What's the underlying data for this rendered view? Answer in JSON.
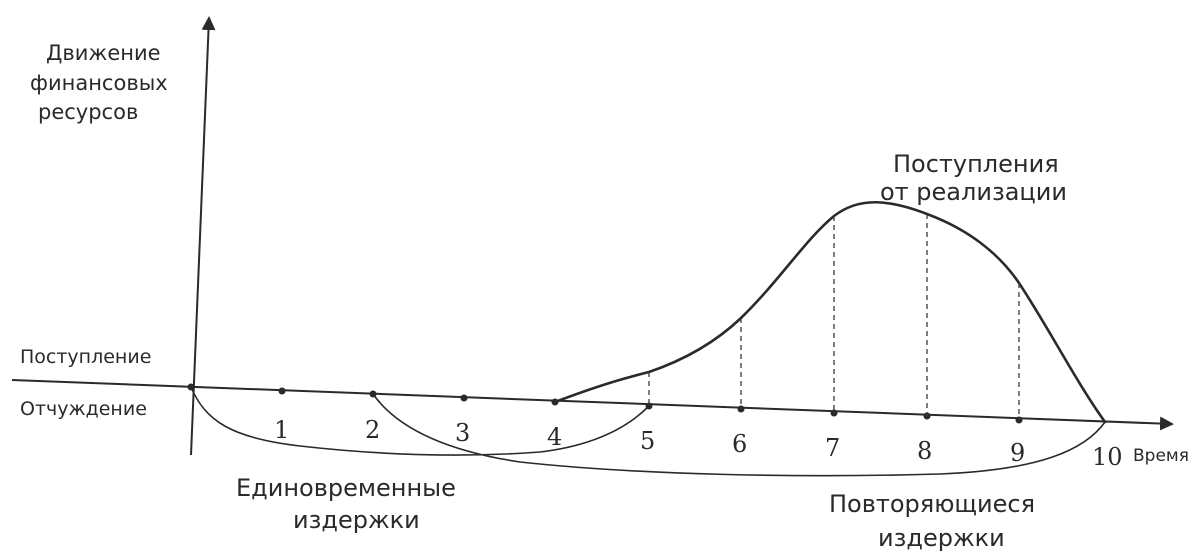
{
  "y_axis_label": [
    "Движение",
    "финансовых",
    "ресурсов"
  ],
  "inflow_label": "Поступление",
  "outflow_label": "Отчуждение",
  "x_axis_label": "Время",
  "time_ticks": [
    "1",
    "2",
    "3",
    "4",
    "5",
    "6",
    "7",
    "8",
    "9",
    "10"
  ],
  "revenue_label": [
    "Поступления",
    "от реализации"
  ],
  "one_time_costs_label": [
    "Единовременные",
    "издержки"
  ],
  "recurring_costs_label": [
    "Повторяющиеся",
    "издержки"
  ]
}
